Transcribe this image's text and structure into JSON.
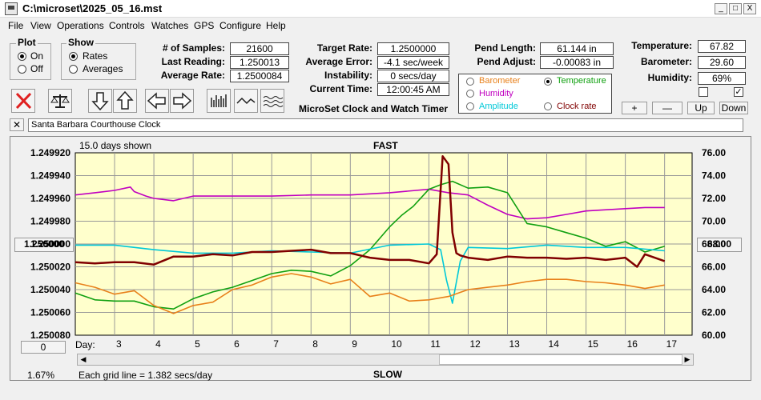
{
  "window": {
    "title": "C:\\microset\\2025_05_16.mst",
    "min": "_",
    "max": "□",
    "close": "X"
  },
  "menu": [
    "File",
    "View",
    "Operations",
    "Controls",
    "Watches",
    "GPS",
    "Configure",
    "Help"
  ],
  "plot_group": {
    "title": "Plot",
    "options": [
      "On",
      "Off"
    ],
    "selected": 0
  },
  "show_group": {
    "title": "Show",
    "options": [
      "Rates",
      "Averages"
    ],
    "selected": 0
  },
  "stats": [
    {
      "label": "# of Samples:",
      "value": "21600"
    },
    {
      "label": "Last Reading:",
      "value": "1.250013"
    },
    {
      "label": "Average Rate:",
      "value": "1.2500084"
    }
  ],
  "rates": [
    {
      "label": "Target Rate:",
      "value": "1.2500000"
    },
    {
      "label": "Average Error:",
      "value": "-4.1 sec/week"
    },
    {
      "label": "Instability:",
      "value": "0 secs/day"
    },
    {
      "label": "Current Time:",
      "value": "12:00:45 AM"
    }
  ],
  "pend": [
    {
      "label": "Pend Length:",
      "value": "61.144 in"
    },
    {
      "label": "Pend Adjust:",
      "value": "-0.00083 in"
    }
  ],
  "env": [
    {
      "label": "Temperature:",
      "value": "67.82"
    },
    {
      "label": "Barometer:",
      "value": "29.60"
    },
    {
      "label": "Humidity:",
      "value": "69%"
    }
  ],
  "env_checks": [
    false,
    true
  ],
  "env_buttons": [
    "+",
    "—",
    "Up",
    "Down"
  ],
  "app_caption": "MicroSet Clock and Watch Timer",
  "sensor_select": {
    "options": [
      {
        "label": "Barometer",
        "color": "#e8801a",
        "selected": false
      },
      {
        "label": "Temperature",
        "color": "#10a010",
        "selected": true
      },
      {
        "label": "Humidity",
        "color": "#c000c0",
        "selected": false
      },
      {
        "label": "Clock rate",
        "color": "#800000",
        "selected": false
      },
      {
        "label": "Amplitude",
        "color": "#00c8d8",
        "selected": false
      }
    ]
  },
  "toolbar": [
    "stop-icon",
    "balance-icon",
    "arrow-down-icon",
    "arrow-up-icon",
    "arrow-left-icon",
    "arrow-right-icon",
    "bar-chart-icon",
    "wave-icon",
    "multi-wave-icon"
  ],
  "note": {
    "value": "Santa Barbara Courthouse Clock",
    "close": "✕"
  },
  "chart_header": {
    "days_shown": "15.0 days shown",
    "fast": "FAST",
    "slow": "SLOW",
    "grid_note": "Each grid line = 1.382 secs/day",
    "percent": "1.67%",
    "day_label": "Day:"
  },
  "center_rate_button": "1.250000",
  "right_temp_button": "68.00",
  "bottom_left_button": "0",
  "chart_data": {
    "type": "line",
    "x_label": "Day",
    "x_range": [
      2.0,
      17.7
    ],
    "x_ticks": [
      3,
      4,
      5,
      6,
      7,
      8,
      9,
      10,
      11,
      12,
      13,
      14,
      15,
      16,
      17
    ],
    "y_left": {
      "ticks": [
        "1.249920",
        "1.249940",
        "1.249960",
        "1.249980",
        "1.250000",
        "1.250020",
        "1.250040",
        "1.250060",
        "1.250080"
      ],
      "range": [
        1.24992,
        1.25008
      ],
      "inverted": true
    },
    "y_right": {
      "ticks": [
        "76.00",
        "74.00",
        "72.00",
        "70.00",
        "68.00",
        "66.00",
        "64.00",
        "62.00",
        "60.00"
      ],
      "range": [
        60,
        76
      ]
    },
    "grid": true,
    "background": "#ffffcc",
    "series": [
      {
        "name": "Humidity",
        "color": "#c000c0",
        "x": [
          2.0,
          2.5,
          3.0,
          3.4,
          3.5,
          3.8,
          4.0,
          4.5,
          5.0,
          6.0,
          7.0,
          8.0,
          9.0,
          10.0,
          11.0,
          11.5,
          12.0,
          12.5,
          13.0,
          13.5,
          14.0,
          14.5,
          15.0,
          16.0,
          16.5,
          17.0
        ],
        "y": [
          72.3,
          72.5,
          72.7,
          73.0,
          72.6,
          72.2,
          72.0,
          71.8,
          72.2,
          72.2,
          72.2,
          72.3,
          72.3,
          72.5,
          72.8,
          72.5,
          72.3,
          71.4,
          70.6,
          70.2,
          70.3,
          70.6,
          70.9,
          71.1,
          71.2,
          71.2
        ]
      },
      {
        "name": "Temperature",
        "color": "#10a010",
        "x": [
          2.0,
          2.5,
          3.0,
          3.5,
          4.0,
          4.5,
          5.0,
          5.5,
          6.0,
          6.5,
          7.0,
          7.5,
          8.0,
          8.5,
          9.0,
          9.5,
          10.0,
          10.3,
          10.6,
          11.0,
          11.3,
          11.6,
          12.0,
          12.5,
          13.0,
          13.5,
          14.0,
          14.5,
          15.0,
          15.5,
          16.0,
          16.5,
          17.0
        ],
        "y": [
          63.7,
          63.1,
          63.0,
          63.0,
          62.5,
          62.3,
          63.2,
          63.8,
          64.2,
          64.8,
          65.4,
          65.7,
          65.6,
          65.2,
          66.1,
          67.5,
          69.5,
          70.5,
          71.3,
          72.8,
          73.2,
          73.5,
          72.9,
          73.0,
          72.5,
          69.8,
          69.5,
          69.0,
          68.5,
          67.8,
          68.2,
          67.3,
          67.8
        ]
      },
      {
        "name": "Amplitude",
        "color": "#00c8d8",
        "x": [
          2.0,
          3.0,
          4.0,
          5.0,
          6.0,
          7.0,
          8.0,
          9.0,
          10.0,
          11.0,
          11.3,
          11.45,
          11.6,
          11.8,
          12.0,
          13.0,
          14.0,
          15.0,
          16.0,
          17.0
        ],
        "y": [
          67.9,
          67.9,
          67.5,
          67.2,
          67.2,
          67.4,
          67.3,
          67.2,
          67.9,
          68.0,
          67.5,
          64.8,
          62.8,
          66.5,
          67.7,
          67.6,
          67.9,
          67.7,
          67.7,
          67.4
        ]
      },
      {
        "name": "Barometer",
        "color": "#e8801a",
        "x": [
          2.0,
          2.5,
          3.0,
          3.5,
          4.0,
          4.5,
          5.0,
          5.5,
          6.0,
          6.5,
          7.0,
          7.5,
          8.0,
          8.5,
          9.0,
          9.5,
          10.0,
          10.5,
          11.0,
          11.5,
          12.0,
          12.5,
          13.0,
          13.5,
          14.0,
          14.5,
          15.0,
          15.5,
          16.0,
          16.5,
          17.0
        ],
        "y": [
          64.6,
          64.2,
          63.6,
          63.9,
          62.6,
          61.9,
          62.6,
          62.9,
          64.0,
          64.4,
          65.1,
          65.4,
          65.1,
          64.5,
          64.9,
          63.4,
          63.7,
          63.0,
          63.1,
          63.4,
          64.0,
          64.2,
          64.4,
          64.7,
          64.9,
          64.9,
          64.7,
          64.6,
          64.4,
          64.1,
          64.4
        ]
      },
      {
        "name": "Clock rate",
        "color": "#800000",
        "x": [
          2.0,
          2.5,
          3.0,
          3.5,
          4.0,
          4.5,
          5.0,
          5.5,
          6.0,
          6.5,
          7.0,
          7.5,
          8.0,
          8.5,
          9.0,
          9.5,
          10.0,
          10.5,
          11.0,
          11.2,
          11.35,
          11.5,
          11.6,
          11.7,
          11.8,
          12.0,
          12.5,
          13.0,
          13.5,
          14.0,
          14.5,
          15.0,
          15.5,
          16.0,
          16.3,
          16.5,
          17.0
        ],
        "y": [
          1.250016,
          1.250017,
          1.250016,
          1.250016,
          1.250018,
          1.250011,
          1.250011,
          1.250009,
          1.25001,
          1.250007,
          1.250007,
          1.250006,
          1.250005,
          1.250008,
          1.250008,
          1.250012,
          1.250014,
          1.250014,
          1.250017,
          1.250009,
          1.249923,
          1.24993,
          1.24999,
          1.250008,
          1.25001,
          1.250012,
          1.250014,
          1.250011,
          1.250012,
          1.250012,
          1.250013,
          1.250012,
          1.250014,
          1.250012,
          1.25002,
          1.250009,
          1.250015
        ]
      }
    ]
  }
}
